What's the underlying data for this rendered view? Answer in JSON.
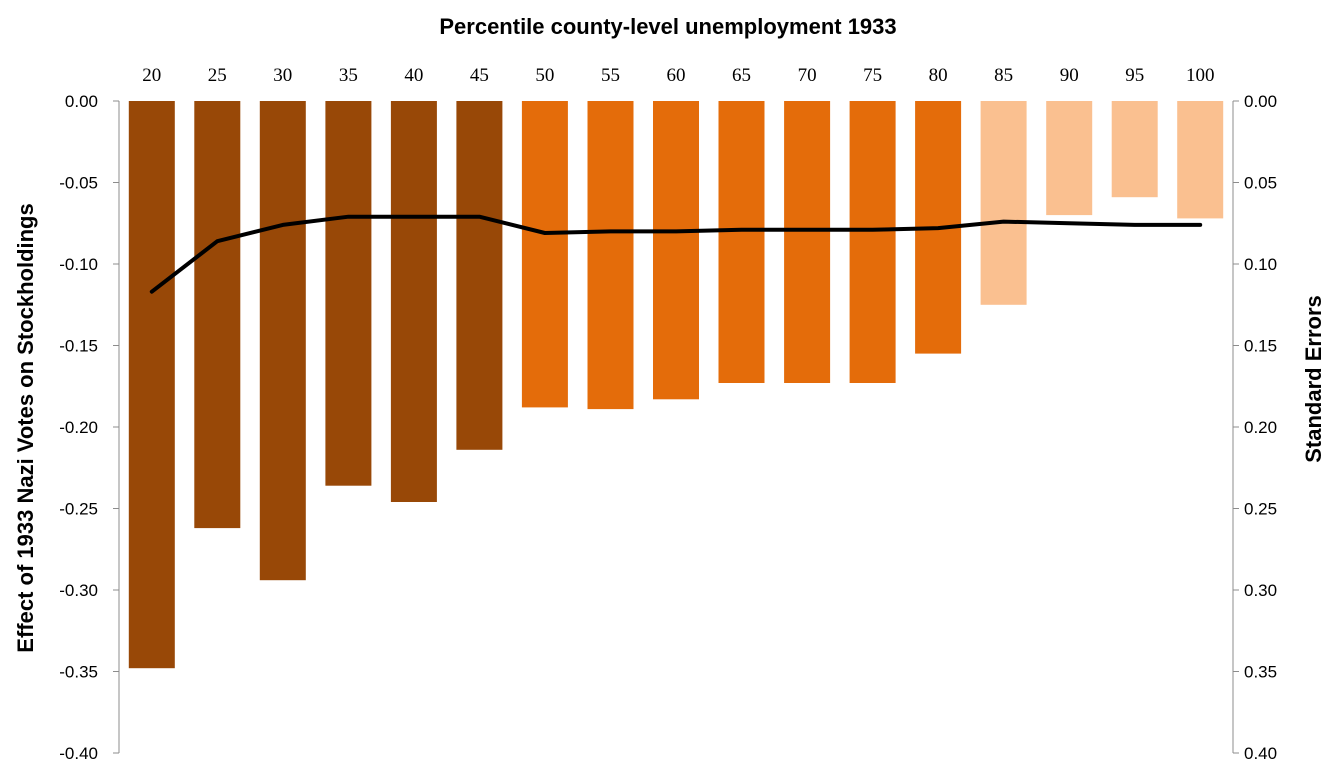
{
  "chart_data": {
    "type": "bar",
    "title": "Percentile county-level unemployment 1933",
    "ylabel_left": "Effect  of 1933  Nazi  Votes  on  Stockholdings",
    "ylabel_right": "Standard Errors",
    "categories": [
      "20",
      "25",
      "30",
      "35",
      "40",
      "45",
      "50",
      "55",
      "60",
      "65",
      "70",
      "75",
      "80",
      "85",
      "90",
      "95",
      "100"
    ],
    "series": [
      {
        "type": "bar",
        "axis": "left",
        "values": [
          -0.348,
          -0.262,
          -0.294,
          -0.236,
          -0.246,
          -0.214,
          -0.188,
          -0.189,
          -0.183,
          -0.173,
          -0.173,
          -0.173,
          -0.155,
          -0.125,
          -0.07,
          -0.059,
          -0.072
        ]
      },
      {
        "type": "line",
        "axis": "right",
        "values": [
          0.117,
          0.086,
          0.076,
          0.071,
          0.071,
          0.071,
          0.081,
          0.08,
          0.08,
          0.079,
          0.079,
          0.079,
          0.078,
          0.074,
          0.075,
          0.076,
          0.076
        ]
      }
    ],
    "bar_colors": [
      "#984807",
      "#984807",
      "#984807",
      "#984807",
      "#984807",
      "#984807",
      "#E46C0A",
      "#E46C0A",
      "#E46C0A",
      "#E46C0A",
      "#E46C0A",
      "#E46C0A",
      "#E46C0A",
      "#FAC090",
      "#FAC090",
      "#FAC090",
      "#FAC090"
    ],
    "line_color": "#000000",
    "left_axis": {
      "ylim": [
        -0.4,
        0.0
      ],
      "ticks": [
        "0.00",
        "-0.05",
        "-0.10",
        "-0.15",
        "-0.20",
        "-0.25",
        "-0.30",
        "-0.35",
        "-0.40"
      ]
    },
    "right_axis": {
      "ylim": [
        0.0,
        0.4
      ],
      "inverted": true,
      "ticks": [
        "0.00",
        "0.05",
        "0.10",
        "0.15",
        "0.20",
        "0.25",
        "0.30",
        "0.35",
        "0.40"
      ]
    },
    "grid": false,
    "legend": "none"
  }
}
